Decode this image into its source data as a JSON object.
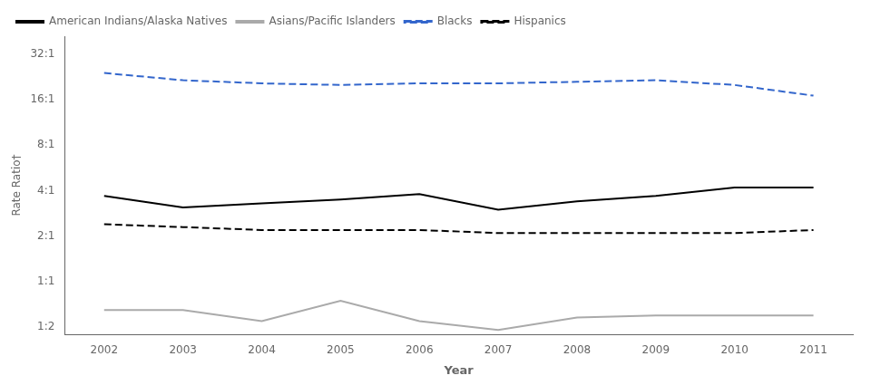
{
  "chart_data": {
    "type": "line",
    "x": [
      2002,
      2003,
      2004,
      2005,
      2006,
      2007,
      2008,
      2009,
      2010,
      2011
    ],
    "series": [
      {
        "name": "American Indians/Alaska Natives",
        "color": "#000000",
        "line_style": "solid",
        "values": [
          3.7,
          3.1,
          3.3,
          3.5,
          3.8,
          3.0,
          3.4,
          3.7,
          4.2,
          4.2
        ]
      },
      {
        "name": "Asians/Pacific Islanders",
        "color": "#aaaaaa",
        "line_style": "solid",
        "values": [
          0.65,
          0.65,
          0.55,
          0.75,
          0.55,
          0.48,
          0.58,
          0.6,
          0.6,
          0.6
        ]
      },
      {
        "name": "Blacks",
        "color": "#3366cc",
        "line_style": "dashed",
        "values": [
          24.0,
          21.5,
          20.5,
          20.0,
          20.5,
          20.5,
          21.0,
          21.5,
          20.0,
          17.0
        ]
      },
      {
        "name": "Hispanics",
        "color": "#000000",
        "line_style": "dashed",
        "values": [
          2.4,
          2.3,
          2.2,
          2.2,
          2.2,
          2.1,
          2.1,
          2.1,
          2.1,
          2.2
        ]
      }
    ],
    "x_label": "Year",
    "y_label": "Rate Ratio†",
    "xlim": [
      2001.5,
      2011.5
    ],
    "xticks": [
      2002,
      2003,
      2004,
      2005,
      2006,
      2007,
      2008,
      2009,
      2010,
      2011
    ],
    "ylim": [
      0.45,
      42
    ],
    "yticks": [
      {
        "value": 32,
        "label": "32:1"
      },
      {
        "value": 16,
        "label": "16:1"
      },
      {
        "value": 8,
        "label": "8:1"
      },
      {
        "value": 4,
        "label": "4:1"
      },
      {
        "value": 2,
        "label": "2:1"
      },
      {
        "value": 1,
        "label": "1:1"
      },
      {
        "value": 0.5,
        "label": "1:2"
      }
    ],
    "log": "y",
    "grid": false,
    "legend": "upper left"
  }
}
